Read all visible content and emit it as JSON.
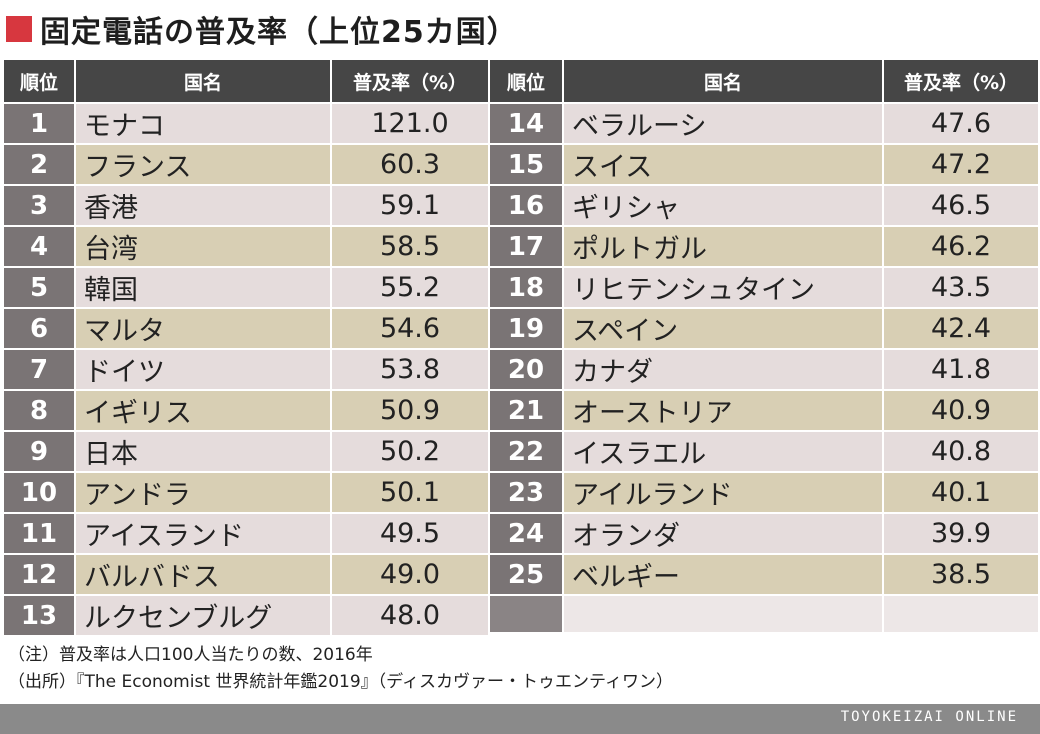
{
  "title": "固定電話の普及率（上位25カ国）",
  "headers": {
    "rank": "順位",
    "country": "国名",
    "rate": "普及率（%）"
  },
  "chart_data": {
    "type": "table",
    "title": "固定電話の普及率（上位25カ国）",
    "columns": [
      "順位",
      "国名",
      "普及率（%）"
    ],
    "rows": [
      {
        "rank": "1",
        "country": "モナコ",
        "rate": "121.0"
      },
      {
        "rank": "2",
        "country": "フランス",
        "rate": "60.3"
      },
      {
        "rank": "3",
        "country": "香港",
        "rate": "59.1"
      },
      {
        "rank": "4",
        "country": "台湾",
        "rate": "58.5"
      },
      {
        "rank": "5",
        "country": "韓国",
        "rate": "55.2"
      },
      {
        "rank": "6",
        "country": "マルタ",
        "rate": "54.6"
      },
      {
        "rank": "7",
        "country": "ドイツ",
        "rate": "53.8"
      },
      {
        "rank": "8",
        "country": "イギリス",
        "rate": "50.9"
      },
      {
        "rank": "9",
        "country": "日本",
        "rate": "50.2"
      },
      {
        "rank": "10",
        "country": "アンドラ",
        "rate": "50.1"
      },
      {
        "rank": "11",
        "country": "アイスランド",
        "rate": "49.5"
      },
      {
        "rank": "12",
        "country": "バルバドス",
        "rate": "49.0"
      },
      {
        "rank": "13",
        "country": "ルクセンブルグ",
        "rate": "48.0"
      },
      {
        "rank": "14",
        "country": "ベラルーシ",
        "rate": "47.6"
      },
      {
        "rank": "15",
        "country": "スイス",
        "rate": "47.2"
      },
      {
        "rank": "16",
        "country": "ギリシャ",
        "rate": "46.5"
      },
      {
        "rank": "17",
        "country": "ポルトガル",
        "rate": "46.2"
      },
      {
        "rank": "18",
        "country": "リヒテンシュタイン",
        "rate": "43.5"
      },
      {
        "rank": "19",
        "country": "スペイン",
        "rate": "42.4"
      },
      {
        "rank": "20",
        "country": "カナダ",
        "rate": "41.8"
      },
      {
        "rank": "21",
        "country": "オーストリア",
        "rate": "40.9"
      },
      {
        "rank": "22",
        "country": "イスラエル",
        "rate": "40.8"
      },
      {
        "rank": "23",
        "country": "アイルランド",
        "rate": "40.1"
      },
      {
        "rank": "24",
        "country": "オランダ",
        "rate": "39.9"
      },
      {
        "rank": "25",
        "country": "ベルギー",
        "rate": "38.5"
      }
    ]
  },
  "notes": {
    "note": "（注）普及率は人口100人当たりの数、2016年",
    "source": "（出所）『The Economist 世界統計年鑑2019』（ディスカヴァー・トゥエンティワン）"
  },
  "footer": {
    "brand": "TOYOKEIZAI ONLINE"
  },
  "colors": {
    "accent": "#d7373f",
    "header_bg": "#464646",
    "rank_bg": "#7a7475",
    "row_light": "#e5dcdc",
    "row_tan": "#d8cfb4",
    "footer_bg": "#8a8a8a"
  }
}
